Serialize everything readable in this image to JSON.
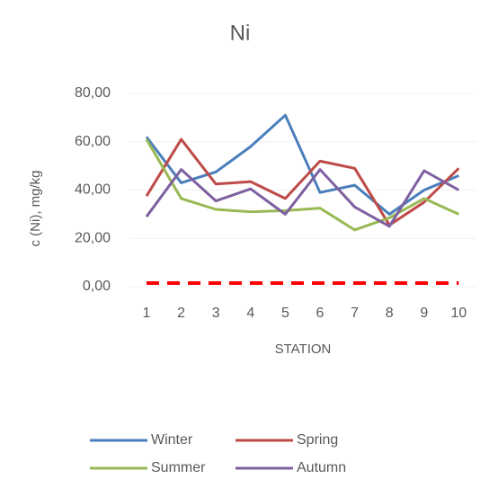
{
  "chart_data": {
    "type": "line",
    "title": "Ni",
    "y_label": "c (Ni), mg/kg",
    "x_label": "STATION",
    "categories": [
      "1",
      "2",
      "3",
      "4",
      "5",
      "6",
      "7",
      "8",
      "9",
      "10"
    ],
    "series": [
      {
        "name": "Winter",
        "color": "#4a7ebb",
        "values": [
          62,
          43,
          47.5,
          58,
          71,
          39,
          42,
          30,
          40,
          46
        ]
      },
      {
        "name": "Spring",
        "color": "#be4b48",
        "values": [
          37.5,
          61,
          42.5,
          43.5,
          36.5,
          52,
          49,
          25.5,
          35,
          49
        ]
      },
      {
        "name": "Summer",
        "color": "#98b954",
        "values": [
          61,
          36.5,
          32,
          31,
          31.5,
          32.5,
          23.5,
          28.5,
          36.5,
          30
        ]
      },
      {
        "name": "Autumn",
        "color": "#7d60a0",
        "values": [
          29,
          48.5,
          35.5,
          40.5,
          30,
          48.5,
          33,
          25,
          48,
          40
        ]
      },
      {
        "color": "#ff0000",
        "dashed": true,
        "values": [
          1.5,
          1.5,
          1.5,
          1.5,
          1.5,
          1.5,
          1.5,
          1.5,
          1.5,
          1.5
        ]
      }
    ],
    "ylim": [
      0,
      80
    ],
    "yticks": [
      {
        "value": 0,
        "label": "0,00"
      },
      {
        "value": 20,
        "label": "20,00"
      },
      {
        "value": 40,
        "label": "40,00"
      },
      {
        "value": 60,
        "label": "60,00"
      },
      {
        "value": 80,
        "label": "80,00"
      }
    ],
    "grid": true,
    "legend": "bottom"
  }
}
